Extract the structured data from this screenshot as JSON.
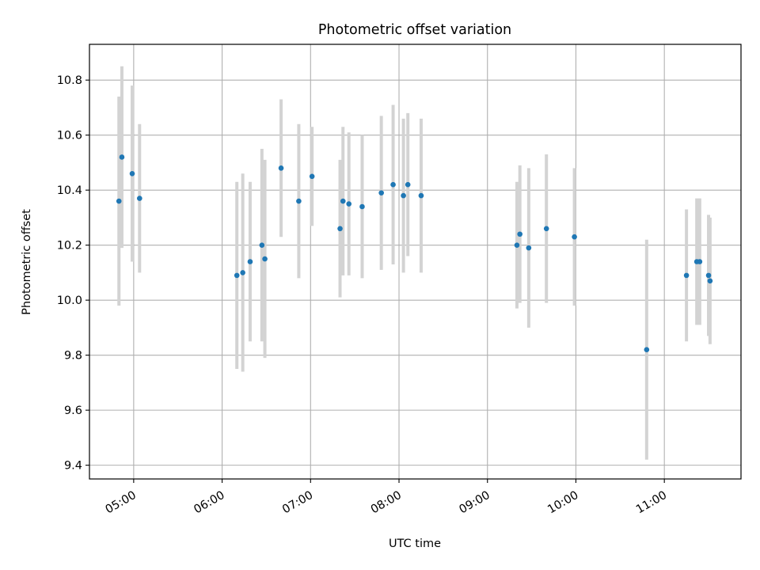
{
  "chart_data": {
    "type": "scatter",
    "title": "Photometric offset variation",
    "xlabel": "UTC time",
    "ylabel": "Photometric offset",
    "x_ticks": [
      "05:00",
      "06:00",
      "07:00",
      "08:00",
      "09:00",
      "10:00",
      "11:00"
    ],
    "y_ticks": [
      "9.4",
      "9.6",
      "9.8",
      "10.0",
      "10.2",
      "10.4",
      "10.6",
      "10.8"
    ],
    "xlim": [
      "04:30",
      "11:52"
    ],
    "ylim": [
      9.35,
      10.93
    ],
    "grid": true,
    "point_color": "#1f77b4",
    "errorbar_color": "#d3d3d3",
    "points": [
      {
        "x": "04:50",
        "y": 10.36,
        "err": 0.38
      },
      {
        "x": "04:52",
        "y": 10.52,
        "err": 0.33
      },
      {
        "x": "04:59",
        "y": 10.46,
        "err": 0.32
      },
      {
        "x": "05:04",
        "y": 10.37,
        "err": 0.27
      },
      {
        "x": "06:10",
        "y": 10.09,
        "err": 0.34
      },
      {
        "x": "06:14",
        "y": 10.1,
        "err": 0.36
      },
      {
        "x": "06:19",
        "y": 10.14,
        "err": 0.29
      },
      {
        "x": "06:27",
        "y": 10.2,
        "err": 0.35
      },
      {
        "x": "06:29",
        "y": 10.15,
        "err": 0.36
      },
      {
        "x": "06:40",
        "y": 10.48,
        "err": 0.25
      },
      {
        "x": "06:52",
        "y": 10.36,
        "err": 0.28
      },
      {
        "x": "07:01",
        "y": 10.45,
        "err": 0.18
      },
      {
        "x": "07:20",
        "y": 10.26,
        "err": 0.25
      },
      {
        "x": "07:22",
        "y": 10.36,
        "err": 0.27
      },
      {
        "x": "07:26",
        "y": 10.35,
        "err": 0.26
      },
      {
        "x": "07:35",
        "y": 10.34,
        "err": 0.26
      },
      {
        "x": "07:48",
        "y": 10.39,
        "err": 0.28
      },
      {
        "x": "07:56",
        "y": 10.42,
        "err": 0.29
      },
      {
        "x": "08:03",
        "y": 10.38,
        "err": 0.28
      },
      {
        "x": "08:06",
        "y": 10.42,
        "err": 0.26
      },
      {
        "x": "08:15",
        "y": 10.38,
        "err": 0.28
      },
      {
        "x": "09:20",
        "y": 10.2,
        "err": 0.23
      },
      {
        "x": "09:22",
        "y": 10.24,
        "err": 0.25
      },
      {
        "x": "09:28",
        "y": 10.19,
        "err": 0.29
      },
      {
        "x": "09:40",
        "y": 10.26,
        "err": 0.27
      },
      {
        "x": "09:59",
        "y": 10.23,
        "err": 0.25
      },
      {
        "x": "10:48",
        "y": 9.82,
        "err": 0.4
      },
      {
        "x": "11:15",
        "y": 10.09,
        "err": 0.24
      },
      {
        "x": "11:22",
        "y": 10.14,
        "err": 0.23
      },
      {
        "x": "11:24",
        "y": 10.14,
        "err": 0.23
      },
      {
        "x": "11:30",
        "y": 10.09,
        "err": 0.22
      },
      {
        "x": "11:31",
        "y": 10.07,
        "err": 0.23
      }
    ]
  }
}
